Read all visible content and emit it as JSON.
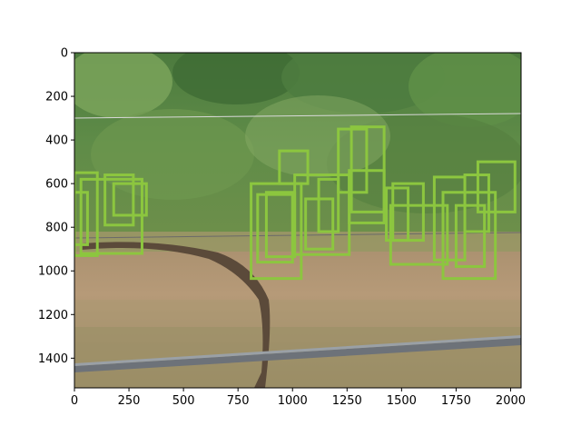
{
  "chart_data": {
    "type": "image",
    "title": "",
    "xlabel": "",
    "ylabel": "",
    "xlim": [
      0,
      2048
    ],
    "ylim": [
      1536,
      0
    ],
    "y_inverted": true,
    "xticks": [
      0,
      250,
      500,
      750,
      1000,
      1250,
      1500,
      1750,
      2000
    ],
    "yticks": [
      0,
      200,
      400,
      600,
      800,
      1000,
      1200,
      1400
    ],
    "grid": false,
    "legend": "none",
    "box_color": "#8cc63f",
    "boxes": [
      {
        "x0": 0,
        "y0": 550,
        "x1": 105,
        "y1": 930
      },
      {
        "x0": 0,
        "y0": 640,
        "x1": 60,
        "y1": 880
      },
      {
        "x0": 30,
        "y0": 580,
        "x1": 310,
        "y1": 920
      },
      {
        "x0": 140,
        "y0": 560,
        "x1": 270,
        "y1": 790
      },
      {
        "x0": 180,
        "y0": 600,
        "x1": 330,
        "y1": 745
      },
      {
        "x0": 810,
        "y0": 600,
        "x1": 1040,
        "y1": 1035
      },
      {
        "x0": 840,
        "y0": 650,
        "x1": 1000,
        "y1": 960
      },
      {
        "x0": 880,
        "y0": 640,
        "x1": 1010,
        "y1": 935
      },
      {
        "x0": 940,
        "y0": 450,
        "x1": 1070,
        "y1": 600
      },
      {
        "x0": 1010,
        "y0": 560,
        "x1": 1260,
        "y1": 925
      },
      {
        "x0": 1060,
        "y0": 670,
        "x1": 1185,
        "y1": 900
      },
      {
        "x0": 1120,
        "y0": 580,
        "x1": 1210,
        "y1": 820
      },
      {
        "x0": 1210,
        "y0": 350,
        "x1": 1340,
        "y1": 640
      },
      {
        "x0": 1270,
        "y0": 340,
        "x1": 1420,
        "y1": 730
      },
      {
        "x0": 1260,
        "y0": 540,
        "x1": 1420,
        "y1": 780
      },
      {
        "x0": 1430,
        "y0": 620,
        "x1": 1530,
        "y1": 860
      },
      {
        "x0": 1460,
        "y0": 600,
        "x1": 1600,
        "y1": 860
      },
      {
        "x0": 1450,
        "y0": 700,
        "x1": 1710,
        "y1": 970
      },
      {
        "x0": 1650,
        "y0": 570,
        "x1": 1790,
        "y1": 950
      },
      {
        "x0": 1690,
        "y0": 640,
        "x1": 1930,
        "y1": 1035
      },
      {
        "x0": 1750,
        "y0": 700,
        "x1": 1880,
        "y1": 980
      },
      {
        "x0": 1790,
        "y0": 560,
        "x1": 1900,
        "y1": 820
      },
      {
        "x0": 1850,
        "y0": 500,
        "x1": 2020,
        "y1": 730
      }
    ]
  }
}
